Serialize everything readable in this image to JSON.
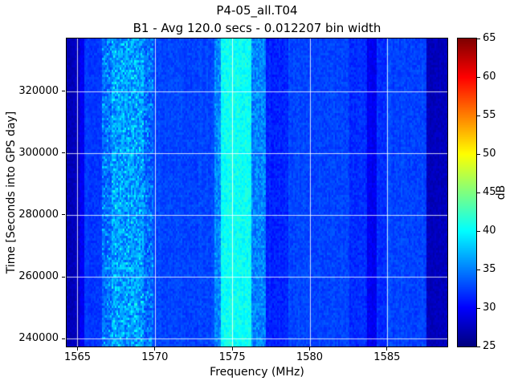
{
  "chart_data": {
    "type": "heatmap",
    "title": "P4-05_all.T04",
    "subtitle": "B1 - Avg 120.0 secs - 0.012207 bin width",
    "xlabel": "Frequency (MHz)",
    "ylabel": "Time [Seconds into GPS day]",
    "colorbar_label": "dB",
    "colormap": "jet",
    "xlim": [
      1564.3,
      1588.9
    ],
    "ylim": [
      237500,
      337000
    ],
    "clim": [
      25,
      65
    ],
    "xticks": [
      1565,
      1570,
      1575,
      1580,
      1585
    ],
    "yticks": [
      240000,
      260000,
      280000,
      300000,
      320000
    ],
    "colorbar_ticks": [
      25,
      30,
      35,
      40,
      45,
      50,
      55,
      60,
      65
    ],
    "grid": true,
    "grid_color": "#ffffff",
    "background_db": 32.8,
    "bands": [
      {
        "range": [
          1564.3,
          1565.1
        ],
        "db": 27.3,
        "noise": 0.7,
        "desc": "left dark edge"
      },
      {
        "range": [
          1565.1,
          1565.45
        ],
        "db": 29.5,
        "noise": 0.7,
        "desc": "thin dark line"
      },
      {
        "range": [
          1565.45,
          1566.6
        ],
        "db": 32.2,
        "noise": 0.8,
        "desc": "background"
      },
      {
        "range": [
          1566.6,
          1567.2
        ],
        "db": 34.2,
        "noise": 2.0,
        "desc": "speckle band left edge"
      },
      {
        "range": [
          1567.2,
          1569.3
        ],
        "db": 36.0,
        "noise": 2.6,
        "desc": "speckled cyan interference band"
      },
      {
        "range": [
          1569.3,
          1569.9
        ],
        "db": 34.0,
        "noise": 2.0,
        "desc": "speckle band right edge"
      },
      {
        "range": [
          1569.9,
          1573.8
        ],
        "db": 32.7,
        "noise": 0.9,
        "desc": "background"
      },
      {
        "range": [
          1573.8,
          1574.3
        ],
        "db": 35.5,
        "noise": 1.8,
        "desc": "L1 band left shoulder"
      },
      {
        "range": [
          1574.3,
          1576.2
        ],
        "db": 40.5,
        "noise": 1.3,
        "desc": "bright GPS L1 cyan band"
      },
      {
        "range": [
          1576.2,
          1577.2
        ],
        "db": 35.3,
        "noise": 1.8,
        "desc": "L1 band right shoulder"
      },
      {
        "range": [
          1577.2,
          1578.6
        ],
        "db": 31.3,
        "noise": 0.9,
        "desc": "slightly darker column"
      },
      {
        "range": [
          1578.6,
          1582.6
        ],
        "db": 32.7,
        "noise": 0.9,
        "desc": "background"
      },
      {
        "range": [
          1582.6,
          1583.7
        ],
        "db": 31.8,
        "noise": 0.9,
        "desc": "slightly darker"
      },
      {
        "range": [
          1583.7,
          1584.3
        ],
        "db": 29.5,
        "noise": 0.8,
        "desc": "dark vertical line"
      },
      {
        "range": [
          1584.3,
          1585.0
        ],
        "db": 31.8,
        "noise": 0.9,
        "desc": "slightly darker"
      },
      {
        "range": [
          1585.0,
          1587.6
        ],
        "db": 32.6,
        "noise": 0.9,
        "desc": "background"
      },
      {
        "range": [
          1587.6,
          1588.9
        ],
        "db": 27.4,
        "noise": 0.7,
        "desc": "right dark edge"
      }
    ]
  }
}
